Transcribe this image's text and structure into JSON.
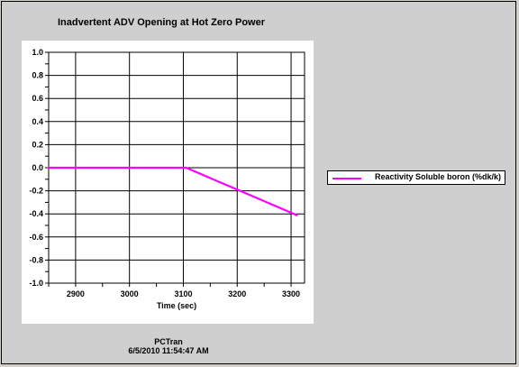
{
  "footer": {
    "app_name": "PCTran",
    "timestamp": "6/5/2010 11:54:47 AM"
  },
  "colors": {
    "series": "#ff00ff",
    "background": "#cfcfcf",
    "plot_background": "#ffffff"
  },
  "chart_data": {
    "type": "line",
    "title": "Inadvertent ADV Opening at Hot Zero Power",
    "xlabel": "Time (sec)",
    "ylabel": "",
    "xlim": [
      2850,
      3325
    ],
    "ylim": [
      -1.0,
      1.0
    ],
    "x_ticks": [
      2900,
      3000,
      3100,
      3200,
      3300
    ],
    "y_ticks": [
      1.0,
      0.8,
      0.6,
      0.4,
      0.2,
      0.0,
      -0.2,
      -0.4,
      -0.6,
      -0.8,
      -1.0
    ],
    "x_tick_labels": [
      "2900",
      "3000",
      "3100",
      "3200",
      "3300"
    ],
    "y_tick_labels": [
      "1.0",
      "0.8",
      "0.6",
      "0.4",
      "0.2",
      "0.0",
      "-0.2",
      "-0.4",
      "-0.6",
      "-0.8",
      "-1.0"
    ],
    "grid": true,
    "legend_position": "right",
    "series": [
      {
        "name": "Reactivity Soluble boron (%dk/k)",
        "color": "#ff00ff",
        "x": [
          2850,
          3000,
          3105,
          3310
        ],
        "y": [
          0.0,
          0.0,
          0.0,
          -0.41
        ]
      }
    ]
  }
}
